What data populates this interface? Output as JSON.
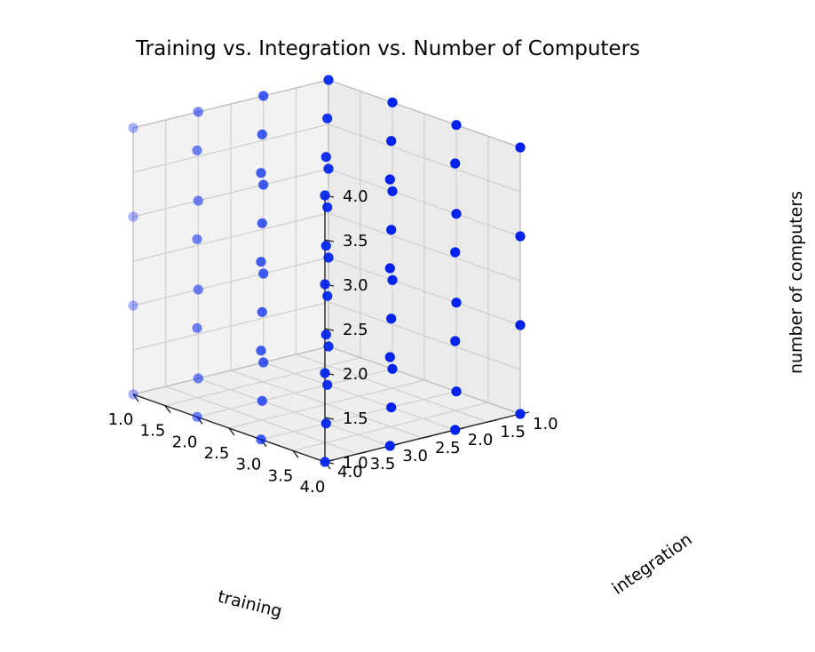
{
  "chart_data": {
    "type": "scatter",
    "projection": "3d",
    "title": "Training vs. Integration vs. Number of Computers",
    "xlabel": "training",
    "ylabel": "integration",
    "zlabel": "number of computers",
    "x_ticks": [
      "1.0",
      "1.5",
      "2.0",
      "2.5",
      "3.0",
      "3.5",
      "4.0"
    ],
    "y_ticks": [
      "1.0",
      "1.5",
      "2.0",
      "2.5",
      "3.0",
      "3.5",
      "4.0"
    ],
    "z_ticks": [
      "1.0",
      "1.5",
      "2.0",
      "2.5",
      "3.0",
      "3.5",
      "4.0"
    ],
    "xlim": [
      1,
      4
    ],
    "ylim": [
      1,
      4
    ],
    "zlim": [
      1,
      4
    ],
    "grid": true,
    "marker_color": "#0022ee",
    "points": [
      {
        "x": 1,
        "y": 1,
        "z": 1
      },
      {
        "x": 1,
        "y": 1,
        "z": 2
      },
      {
        "x": 1,
        "y": 1,
        "z": 3
      },
      {
        "x": 1,
        "y": 1,
        "z": 4
      },
      {
        "x": 1,
        "y": 2,
        "z": 1
      },
      {
        "x": 1,
        "y": 2,
        "z": 2
      },
      {
        "x": 1,
        "y": 2,
        "z": 3
      },
      {
        "x": 1,
        "y": 2,
        "z": 4
      },
      {
        "x": 1,
        "y": 3,
        "z": 1
      },
      {
        "x": 1,
        "y": 3,
        "z": 2
      },
      {
        "x": 1,
        "y": 3,
        "z": 3
      },
      {
        "x": 1,
        "y": 3,
        "z": 4
      },
      {
        "x": 1,
        "y": 4,
        "z": 1
      },
      {
        "x": 1,
        "y": 4,
        "z": 2
      },
      {
        "x": 1,
        "y": 4,
        "z": 3
      },
      {
        "x": 1,
        "y": 4,
        "z": 4
      },
      {
        "x": 2,
        "y": 1,
        "z": 1
      },
      {
        "x": 2,
        "y": 1,
        "z": 2
      },
      {
        "x": 2,
        "y": 1,
        "z": 3
      },
      {
        "x": 2,
        "y": 1,
        "z": 4
      },
      {
        "x": 2,
        "y": 2,
        "z": 1
      },
      {
        "x": 2,
        "y": 2,
        "z": 2
      },
      {
        "x": 2,
        "y": 2,
        "z": 3
      },
      {
        "x": 2,
        "y": 2,
        "z": 4
      },
      {
        "x": 2,
        "y": 3,
        "z": 1
      },
      {
        "x": 2,
        "y": 3,
        "z": 2
      },
      {
        "x": 2,
        "y": 3,
        "z": 3
      },
      {
        "x": 2,
        "y": 3,
        "z": 4
      },
      {
        "x": 2,
        "y": 4,
        "z": 1
      },
      {
        "x": 2,
        "y": 4,
        "z": 2
      },
      {
        "x": 2,
        "y": 4,
        "z": 3
      },
      {
        "x": 2,
        "y": 4,
        "z": 4
      },
      {
        "x": 3,
        "y": 1,
        "z": 1
      },
      {
        "x": 3,
        "y": 1,
        "z": 2
      },
      {
        "x": 3,
        "y": 1,
        "z": 3
      },
      {
        "x": 3,
        "y": 1,
        "z": 4
      },
      {
        "x": 3,
        "y": 2,
        "z": 1
      },
      {
        "x": 3,
        "y": 2,
        "z": 2
      },
      {
        "x": 3,
        "y": 2,
        "z": 3
      },
      {
        "x": 3,
        "y": 2,
        "z": 4
      },
      {
        "x": 3,
        "y": 3,
        "z": 1
      },
      {
        "x": 3,
        "y": 3,
        "z": 2
      },
      {
        "x": 3,
        "y": 3,
        "z": 3
      },
      {
        "x": 3,
        "y": 3,
        "z": 4
      },
      {
        "x": 3,
        "y": 4,
        "z": 1
      },
      {
        "x": 3,
        "y": 4,
        "z": 2
      },
      {
        "x": 3,
        "y": 4,
        "z": 3
      },
      {
        "x": 3,
        "y": 4,
        "z": 4
      },
      {
        "x": 4,
        "y": 1,
        "z": 1
      },
      {
        "x": 4,
        "y": 1,
        "z": 2
      },
      {
        "x": 4,
        "y": 1,
        "z": 3
      },
      {
        "x": 4,
        "y": 1,
        "z": 4
      },
      {
        "x": 4,
        "y": 2,
        "z": 1
      },
      {
        "x": 4,
        "y": 2,
        "z": 2
      },
      {
        "x": 4,
        "y": 2,
        "z": 3
      },
      {
        "x": 4,
        "y": 2,
        "z": 4
      },
      {
        "x": 4,
        "y": 3,
        "z": 1
      },
      {
        "x": 4,
        "y": 3,
        "z": 2
      },
      {
        "x": 4,
        "y": 3,
        "z": 3
      },
      {
        "x": 4,
        "y": 3,
        "z": 4
      },
      {
        "x": 4,
        "y": 4,
        "z": 1
      },
      {
        "x": 4,
        "y": 4,
        "z": 2
      },
      {
        "x": 4,
        "y": 4,
        "z": 3
      },
      {
        "x": 4,
        "y": 4,
        "z": 4
      }
    ]
  }
}
